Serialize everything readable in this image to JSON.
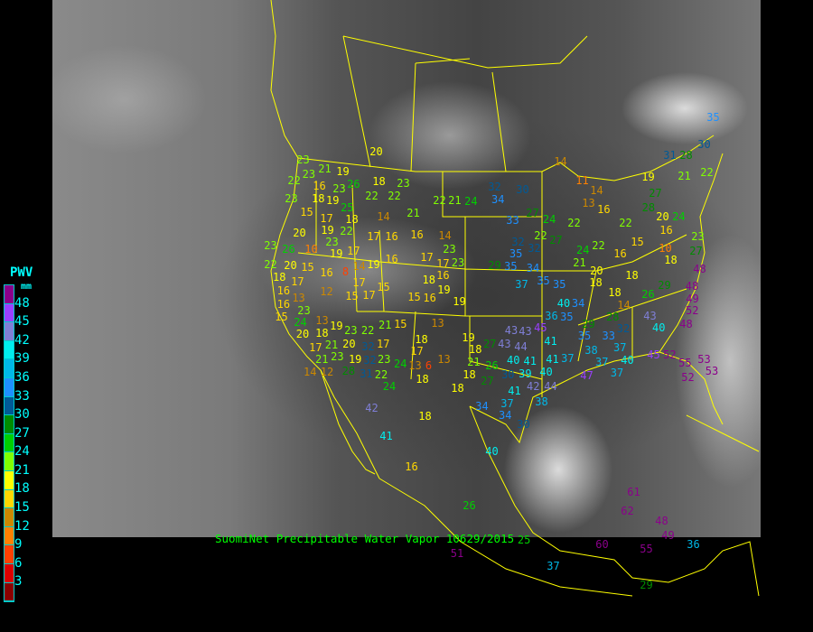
{
  "legend": {
    "title": "PWV",
    "unit": "mm",
    "ticks": [
      "48",
      "45",
      "42",
      "39",
      "36",
      "33",
      "30",
      "27",
      "24",
      "21",
      "18",
      "15",
      "12",
      "9",
      "6",
      "3"
    ],
    "colors": [
      "#8b008b",
      "#9a40ff",
      "#7f7fd6",
      "#00eeee",
      "#00b8e8",
      "#1e90ff",
      "#005a96",
      "#008c00",
      "#00d000",
      "#80ff00",
      "#ffff00",
      "#ffd700",
      "#cc8800",
      "#ff8000",
      "#ff4000",
      "#dd0000",
      "#8b0000"
    ]
  },
  "caption": "SuomiNet Precipitable Water Vapor 10629/2015",
  "map_colors": {
    "borders": "#ffff00",
    "caption": "#00ff00"
  },
  "stations": [
    20,
    23,
    18,
    22,
    22,
    22,
    21,
    24,
    21,
    14,
    16,
    23,
    26,
    19,
    21,
    23,
    23,
    22,
    23,
    18,
    19,
    15,
    17,
    25,
    18,
    19,
    22,
    23,
    17,
    16,
    16,
    14,
    20,
    23,
    26,
    10,
    19,
    17,
    23,
    22,
    20,
    15,
    16,
    8,
    14,
    19,
    16,
    17,
    17,
    23,
    16,
    18,
    19,
    17,
    15,
    12,
    15,
    17,
    15,
    16,
    19,
    18,
    17,
    16,
    13,
    16,
    15,
    23,
    24,
    20,
    13,
    18,
    19,
    23,
    22,
    17,
    21,
    20,
    21,
    23,
    19,
    28,
    32,
    32,
    31,
    22,
    23,
    24,
    12,
    14,
    21,
    15,
    17,
    18,
    17,
    13,
    13,
    6,
    13,
    18,
    24,
    18,
    18,
    18,
    19,
    18,
    27,
    21,
    26,
    27,
    30,
    39,
    42,
    41,
    37,
    34,
    34,
    38,
    44,
    40,
    41,
    40,
    44,
    43,
    43,
    43,
    45,
    41,
    41,
    37,
    38,
    37,
    40,
    47,
    37,
    45,
    52,
    55,
    53,
    53,
    52,
    43,
    40,
    48,
    49,
    52,
    48,
    48,
    29,
    26,
    14,
    28,
    29,
    32,
    33,
    37,
    35,
    36,
    35,
    40,
    34,
    37,
    35,
    35,
    34,
    29,
    35,
    35,
    32,
    32,
    22,
    27,
    22,
    22,
    24,
    21,
    20,
    18,
    16,
    15,
    18,
    18,
    20,
    24,
    16,
    10,
    18,
    23,
    27,
    14,
    11,
    14,
    13,
    16,
    19,
    27,
    28,
    31,
    28,
    21,
    22,
    32,
    34,
    33,
    30,
    27,
    24,
    22,
    42,
    41,
    40,
    30,
    16,
    26,
    61,
    62,
    48,
    49,
    60,
    55,
    36,
    37,
    29,
    51,
    25,
    35,
    30
  ]
}
